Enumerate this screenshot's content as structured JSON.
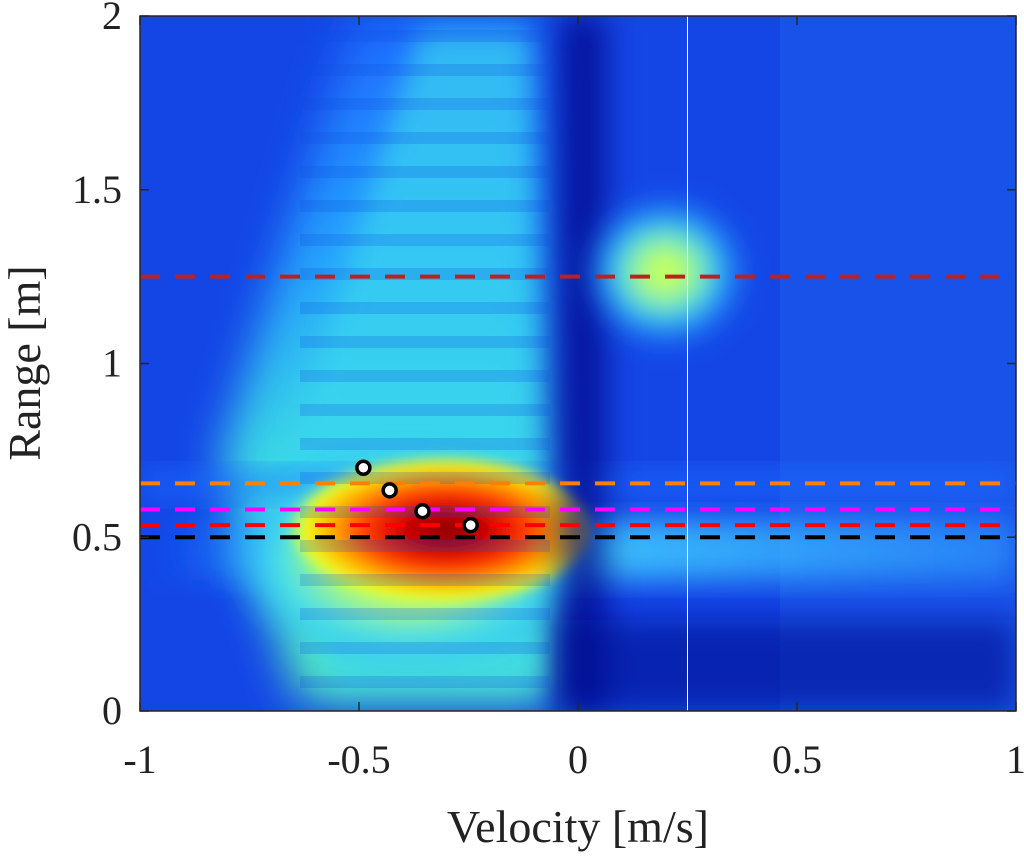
{
  "chart_data": {
    "type": "heatmap",
    "title": "",
    "xlabel": "Velocity [m/s]",
    "ylabel": "Range [m]",
    "xlim": [
      -1,
      1
    ],
    "ylim": [
      0,
      2
    ],
    "colormap": "jet",
    "grid": false,
    "x_ticks": [
      "-1",
      "-0.5",
      "0",
      "0.5",
      "1"
    ],
    "y_ticks": [
      "0",
      "0.5",
      "1",
      "1.5",
      "2"
    ],
    "x_tick_values": [
      -1,
      -0.5,
      0,
      0.5,
      1
    ],
    "y_tick_values": [
      0,
      0.5,
      1,
      1.5,
      2
    ],
    "vertical_line": {
      "x": 0.25,
      "color": "#ffffff"
    },
    "horizontal_lines": [
      {
        "y": 1.25,
        "color": "#c0201a",
        "style": "dashed"
      },
      {
        "y": 0.655,
        "color": "#ff8000",
        "style": "dashed"
      },
      {
        "y": 0.58,
        "color": "#ff00ff",
        "style": "dashed"
      },
      {
        "y": 0.535,
        "color": "#ff0000",
        "style": "dashed"
      },
      {
        "y": 0.5,
        "color": "#000000",
        "style": "dashed"
      }
    ],
    "markers": [
      {
        "x": -0.49,
        "y": 0.7
      },
      {
        "x": -0.43,
        "y": 0.635
      },
      {
        "x": -0.355,
        "y": 0.575
      },
      {
        "x": -0.245,
        "y": 0.535
      }
    ],
    "hotspots": [
      {
        "label": "main-blob",
        "x": -0.3,
        "y": 0.52,
        "intensity": 1.0
      },
      {
        "label": "secondary-blob",
        "x": 0.1,
        "y": 1.25,
        "intensity": 0.55
      }
    ]
  }
}
